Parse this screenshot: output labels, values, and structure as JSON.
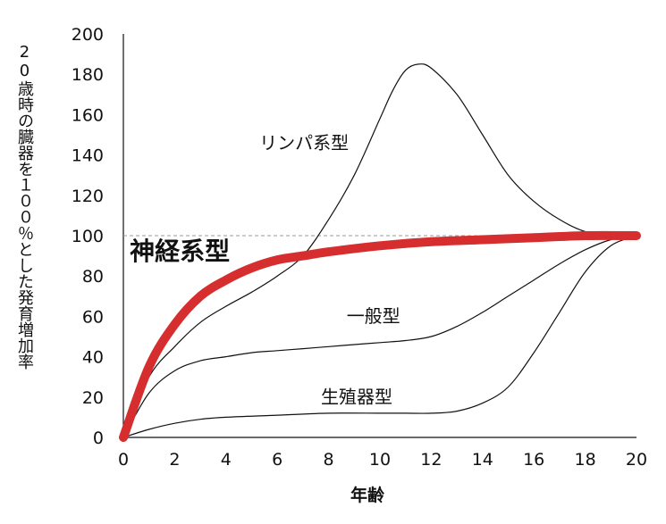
{
  "chart_data": {
    "type": "line",
    "xlabel": "年齢",
    "ylabel": "20歳時の臓器を１００％とした発育増加率",
    "xlim": [
      0,
      20
    ],
    "ylim": [
      0,
      200
    ],
    "xticks": [
      0,
      2,
      4,
      6,
      8,
      10,
      12,
      14,
      16,
      18,
      20
    ],
    "yticks": [
      0,
      20,
      40,
      60,
      80,
      100,
      120,
      140,
      160,
      180,
      200
    ],
    "reference_line": 100,
    "grid": false,
    "series": [
      {
        "name": "リンパ系型",
        "color": "#111111",
        "emphasis": false,
        "x": [
          0,
          1,
          2,
          3,
          4,
          5,
          6,
          7,
          8,
          9,
          10,
          10.5,
          11,
          11.5,
          12,
          13,
          14,
          15,
          16,
          17,
          18,
          19,
          20
        ],
        "y": [
          0,
          30,
          45,
          57,
          65,
          72,
          80,
          90,
          108,
          130,
          158,
          172,
          182,
          185,
          183,
          170,
          150,
          130,
          117,
          108,
          102,
          100,
          100
        ]
      },
      {
        "name": "神経系型",
        "color": "#d62e2e",
        "emphasis": true,
        "x": [
          0,
          1,
          2,
          3,
          4,
          5,
          6,
          7,
          8,
          10,
          12,
          14,
          16,
          18,
          20
        ],
        "y": [
          0,
          35,
          56,
          70,
          78,
          84,
          88,
          90,
          92,
          95,
          97,
          98,
          99,
          100,
          100
        ]
      },
      {
        "name": "一般型",
        "color": "#111111",
        "emphasis": false,
        "x": [
          0,
          1,
          2,
          3,
          4,
          5,
          6,
          7,
          8,
          9,
          10,
          11,
          12,
          13,
          14,
          15,
          16,
          17,
          18,
          19,
          20
        ],
        "y": [
          0,
          22,
          33,
          38,
          40,
          42,
          43,
          44,
          45,
          46,
          47,
          48,
          50,
          55,
          62,
          70,
          78,
          86,
          93,
          98,
          100
        ]
      },
      {
        "name": "生殖器型",
        "color": "#111111",
        "emphasis": false,
        "x": [
          0,
          1,
          2,
          3,
          4,
          6,
          8,
          10,
          11,
          12,
          13,
          14,
          15,
          16,
          17,
          18,
          19,
          20
        ],
        "y": [
          0,
          4,
          7,
          9,
          10,
          11,
          12,
          12,
          12,
          12,
          13,
          17,
          25,
          42,
          62,
          82,
          95,
          100
        ]
      }
    ]
  }
}
